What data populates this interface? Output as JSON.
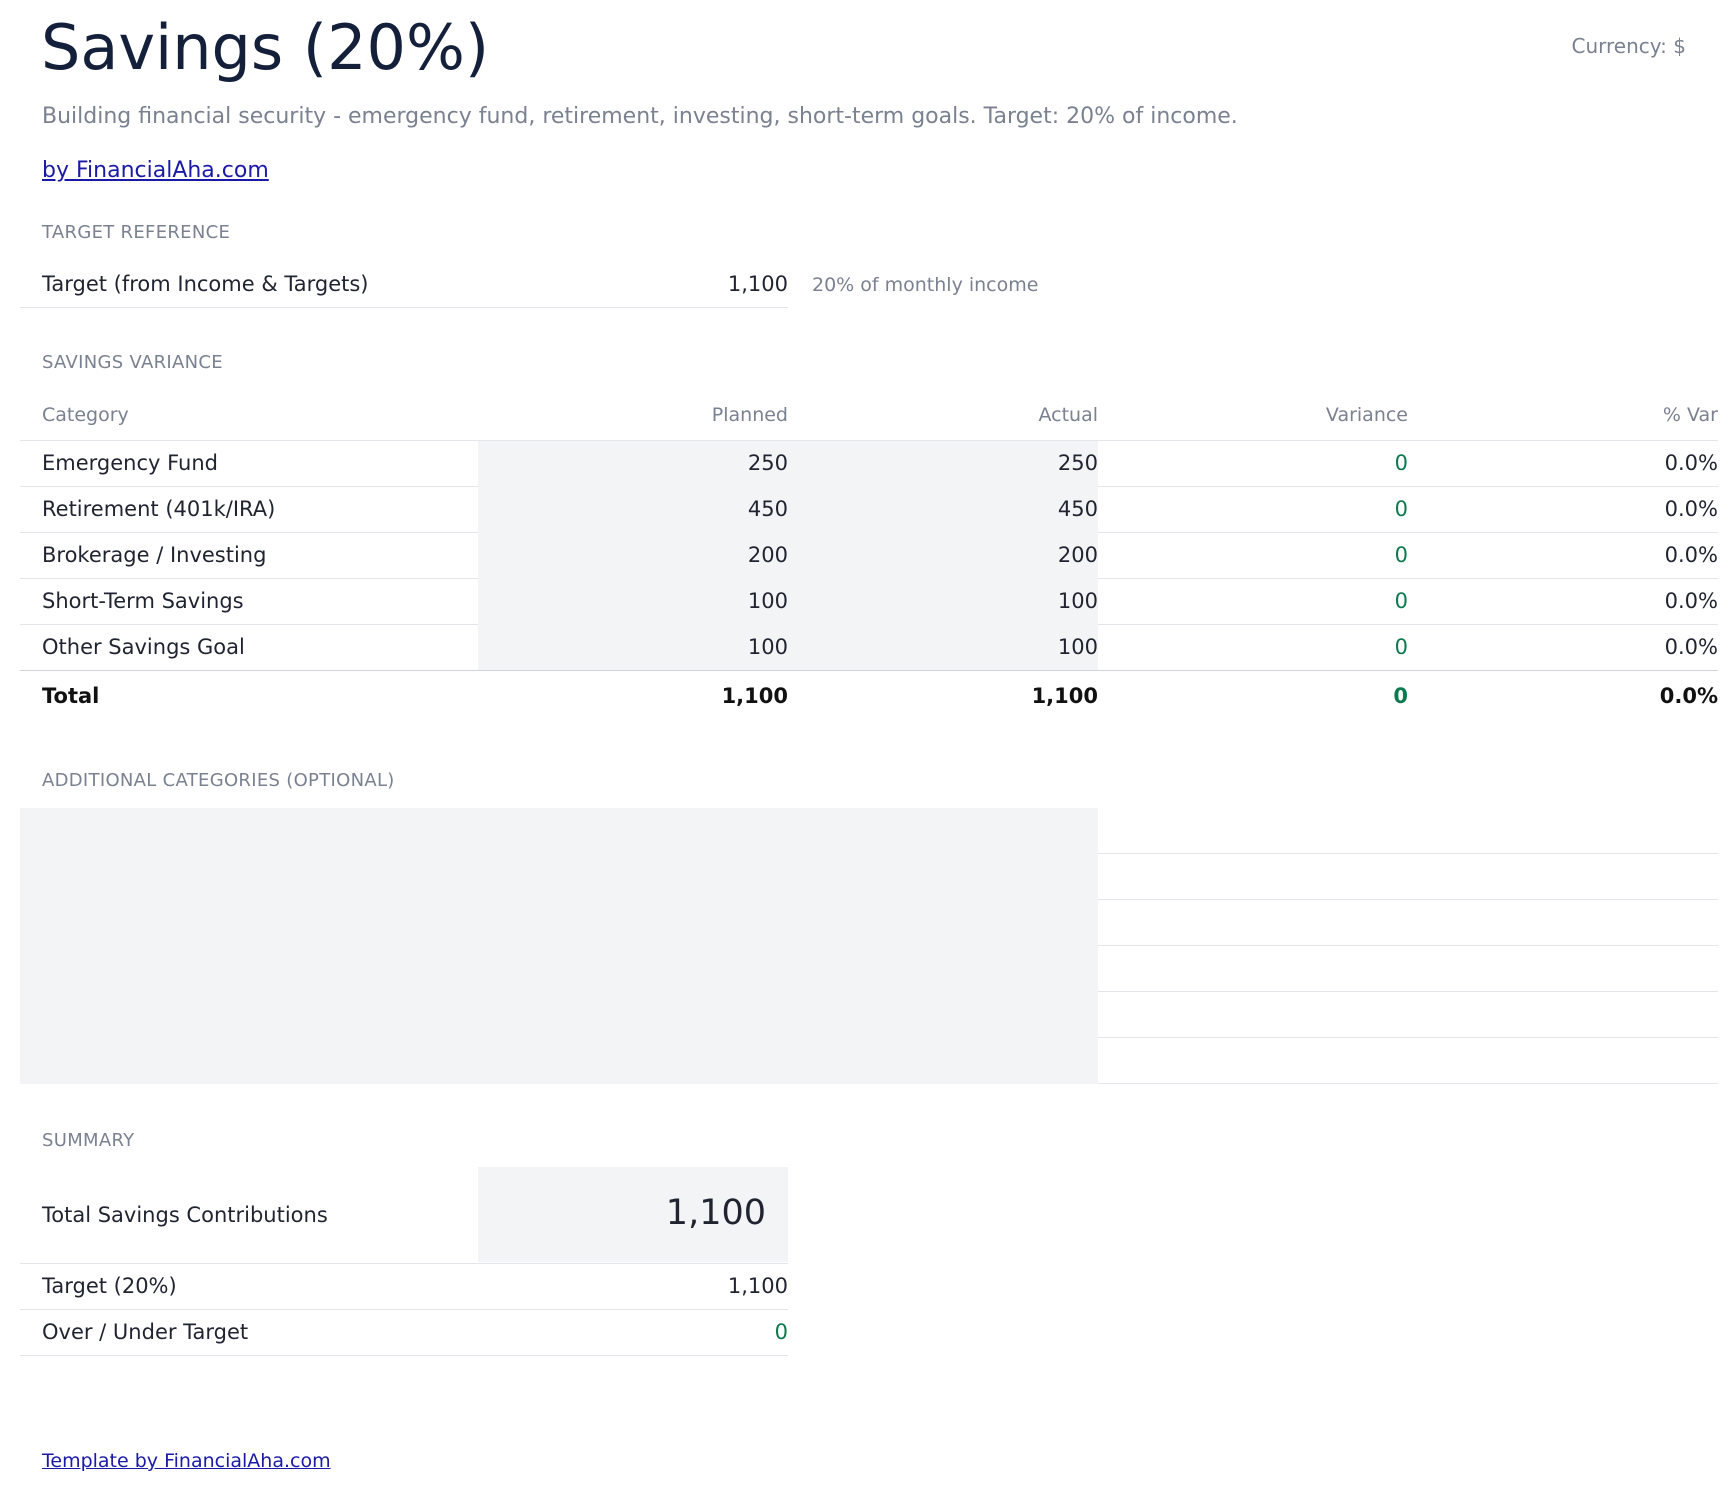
{
  "header": {
    "title": "Savings (20%)",
    "currency_label": "Currency: $",
    "subtitle": "Building financial security - emergency fund, retirement, investing, short-term goals. Target: 20% of income.",
    "brand_link": "by FinancialAha.com"
  },
  "target_reference": {
    "section_label": "TARGET REFERENCE",
    "label": "Target (from Income & Targets)",
    "value": "1,100",
    "note": "20% of monthly income"
  },
  "savings_variance": {
    "section_label": "SAVINGS VARIANCE",
    "columns": [
      "Category",
      "Planned",
      "Actual",
      "Variance",
      "% Var"
    ],
    "rows": [
      {
        "category": "Emergency Fund",
        "planned": "250",
        "actual": "250",
        "variance": "0",
        "pct": "0.0%"
      },
      {
        "category": "Retirement (401k/IRA)",
        "planned": "450",
        "actual": "450",
        "variance": "0",
        "pct": "0.0%"
      },
      {
        "category": "Brokerage / Investing",
        "planned": "200",
        "actual": "200",
        "variance": "0",
        "pct": "0.0%"
      },
      {
        "category": "Short-Term Savings",
        "planned": "100",
        "actual": "100",
        "variance": "0",
        "pct": "0.0%"
      },
      {
        "category": "Other Savings Goal",
        "planned": "100",
        "actual": "100",
        "variance": "0",
        "pct": "0.0%"
      }
    ],
    "total": {
      "category": "Total",
      "planned": "1,100",
      "actual": "1,100",
      "variance": "0",
      "pct": "0.0%"
    }
  },
  "additional_categories": {
    "section_label": "ADDITIONAL CATEGORIES (OPTIONAL)"
  },
  "summary": {
    "section_label": "SUMMARY",
    "total_label": "Total Savings Contributions",
    "total_value": "1,100",
    "target_label": "Target (20%)",
    "target_value": "1,100",
    "over_under_label": "Over / Under Target",
    "over_under_value": "0"
  },
  "footer": {
    "link": "Template by FinancialAha.com"
  },
  "colors": {
    "title": "#14203a",
    "muted": "#7a8190",
    "link": "#1a1aa6",
    "positive": "#0c7a4e",
    "input_shade": "#f3f4f6"
  }
}
